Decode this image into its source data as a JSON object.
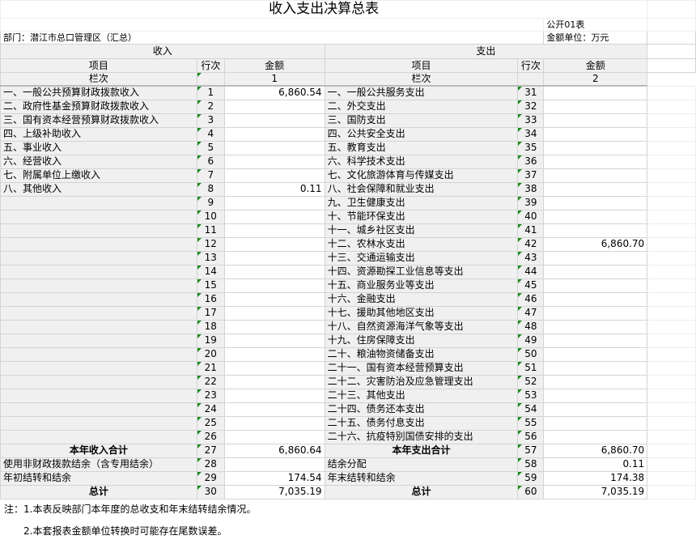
{
  "title": "收入支出决算总表",
  "form_no": "公开01表",
  "department": "部门：潜江市总口管理区（汇总）",
  "unit": "金额单位：万元",
  "headers": {
    "income": "收入",
    "expense": "支出",
    "item": "项目",
    "line": "行次",
    "amount": "金额",
    "col": "栏次",
    "col1": "1",
    "col2": "2"
  },
  "rows": [
    {
      "in_item": "一、一般公共预算财政拨款收入",
      "in_no": "1",
      "in_amt": "6,860.54",
      "ex_item": "一、一般公共服务支出",
      "ex_no": "31",
      "ex_amt": ""
    },
    {
      "in_item": "二、政府性基金预算财政拨款收入",
      "in_no": "2",
      "in_amt": "",
      "ex_item": "二、外交支出",
      "ex_no": "32",
      "ex_amt": ""
    },
    {
      "in_item": "三、国有资本经营预算财政拨款收入",
      "in_no": "3",
      "in_amt": "",
      "ex_item": "三、国防支出",
      "ex_no": "33",
      "ex_amt": ""
    },
    {
      "in_item": "四、上级补助收入",
      "in_no": "4",
      "in_amt": "",
      "ex_item": "四、公共安全支出",
      "ex_no": "34",
      "ex_amt": ""
    },
    {
      "in_item": "五、事业收入",
      "in_no": "5",
      "in_amt": "",
      "ex_item": "五、教育支出",
      "ex_no": "35",
      "ex_amt": ""
    },
    {
      "in_item": "六、经营收入",
      "in_no": "6",
      "in_amt": "",
      "ex_item": "六、科学技术支出",
      "ex_no": "36",
      "ex_amt": ""
    },
    {
      "in_item": "七、附属单位上缴收入",
      "in_no": "7",
      "in_amt": "",
      "ex_item": "七、文化旅游体育与传媒支出",
      "ex_no": "37",
      "ex_amt": ""
    },
    {
      "in_item": "八、其他收入",
      "in_no": "8",
      "in_amt": "0.11",
      "ex_item": "八、社会保障和就业支出",
      "ex_no": "38",
      "ex_amt": ""
    },
    {
      "in_item": "",
      "in_no": "9",
      "in_amt": "",
      "ex_item": "九、卫生健康支出",
      "ex_no": "39",
      "ex_amt": ""
    },
    {
      "in_item": "",
      "in_no": "10",
      "in_amt": "",
      "ex_item": "十、节能环保支出",
      "ex_no": "40",
      "ex_amt": ""
    },
    {
      "in_item": "",
      "in_no": "11",
      "in_amt": "",
      "ex_item": "十一、城乡社区支出",
      "ex_no": "41",
      "ex_amt": ""
    },
    {
      "in_item": "",
      "in_no": "12",
      "in_amt": "",
      "ex_item": "十二、农林水支出",
      "ex_no": "42",
      "ex_amt": "6,860.70"
    },
    {
      "in_item": "",
      "in_no": "13",
      "in_amt": "",
      "ex_item": "十三、交通运输支出",
      "ex_no": "43",
      "ex_amt": ""
    },
    {
      "in_item": "",
      "in_no": "14",
      "in_amt": "",
      "ex_item": "十四、资源勘探工业信息等支出",
      "ex_no": "44",
      "ex_amt": ""
    },
    {
      "in_item": "",
      "in_no": "15",
      "in_amt": "",
      "ex_item": "十五、商业服务业等支出",
      "ex_no": "45",
      "ex_amt": ""
    },
    {
      "in_item": "",
      "in_no": "16",
      "in_amt": "",
      "ex_item": "十六、金融支出",
      "ex_no": "46",
      "ex_amt": ""
    },
    {
      "in_item": "",
      "in_no": "17",
      "in_amt": "",
      "ex_item": "十七、援助其他地区支出",
      "ex_no": "47",
      "ex_amt": ""
    },
    {
      "in_item": "",
      "in_no": "18",
      "in_amt": "",
      "ex_item": "十八、自然资源海洋气象等支出",
      "ex_no": "48",
      "ex_amt": ""
    },
    {
      "in_item": "",
      "in_no": "19",
      "in_amt": "",
      "ex_item": "十九、住房保障支出",
      "ex_no": "49",
      "ex_amt": ""
    },
    {
      "in_item": "",
      "in_no": "20",
      "in_amt": "",
      "ex_item": "二十、粮油物资储备支出",
      "ex_no": "50",
      "ex_amt": ""
    },
    {
      "in_item": "",
      "in_no": "21",
      "in_amt": "",
      "ex_item": "二十一、国有资本经营预算支出",
      "ex_no": "51",
      "ex_amt": ""
    },
    {
      "in_item": "",
      "in_no": "22",
      "in_amt": "",
      "ex_item": "二十二、灾害防治及应急管理支出",
      "ex_no": "52",
      "ex_amt": ""
    },
    {
      "in_item": "",
      "in_no": "23",
      "in_amt": "",
      "ex_item": "二十三、其他支出",
      "ex_no": "53",
      "ex_amt": ""
    },
    {
      "in_item": "",
      "in_no": "24",
      "in_amt": "",
      "ex_item": "二十四、债务还本支出",
      "ex_no": "54",
      "ex_amt": ""
    },
    {
      "in_item": "",
      "in_no": "25",
      "in_amt": "",
      "ex_item": "二十五、债务付息支出",
      "ex_no": "55",
      "ex_amt": ""
    },
    {
      "in_item": "",
      "in_no": "26",
      "in_amt": "",
      "ex_item": "二十六、抗疫特别国债安排的支出",
      "ex_no": "56",
      "ex_amt": ""
    }
  ],
  "summary": [
    {
      "in_item": "本年收入合计",
      "in_no": "27",
      "in_amt": "6,860.64",
      "ex_item": "本年支出合计",
      "ex_no": "57",
      "ex_amt": "6,860.70",
      "bold": true
    },
    {
      "in_item": "使用非财政拨款结余（含专用结余）",
      "in_no": "28",
      "in_amt": "",
      "ex_item": "结余分配",
      "ex_no": "58",
      "ex_amt": "0.11",
      "bold": false
    },
    {
      "in_item": "年初结转和结余",
      "in_no": "29",
      "in_amt": "174.54",
      "ex_item": "年末结转和结余",
      "ex_no": "59",
      "ex_amt": "174.38",
      "bold": false
    },
    {
      "in_item": "总计",
      "in_no": "30",
      "in_amt": "7,035.19",
      "ex_item": "总计",
      "ex_no": "60",
      "ex_amt": "7,035.19",
      "bold": true
    }
  ],
  "notes": [
    "注：1.本表反映部门本年度的总收支和年末结转结余情况。",
    "2.本套报表金额单位转换时可能存在尾数误差。"
  ]
}
